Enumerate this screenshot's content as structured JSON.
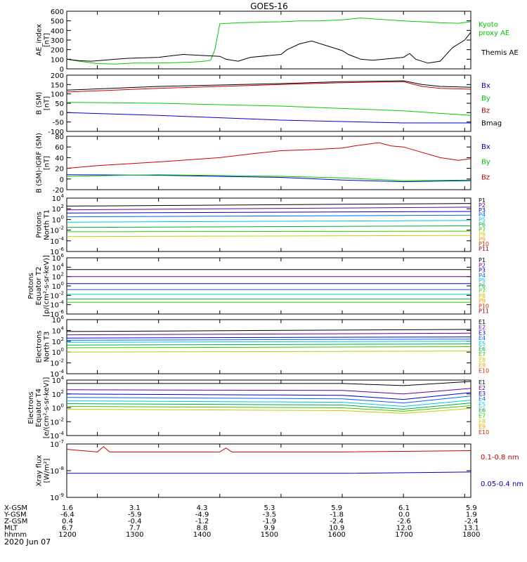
{
  "title": "GOES-16",
  "date_label": "2020 Jun 07",
  "ephemeris_rows": [
    {
      "label": "X-GSM",
      "values": [
        "1.6",
        "3.1",
        "4.3",
        "5.3",
        "5.9",
        "6.1",
        "5.9"
      ]
    },
    {
      "label": "Y-GSM",
      "values": [
        "-6.4",
        "-5.9",
        "-4.9",
        "-3.5",
        "-1.8",
        "0.0",
        "1.9"
      ]
    },
    {
      "label": "Z-GSM",
      "values": [
        "0.4",
        "-0.4",
        "-1.2",
        "-1.9",
        "-2.4",
        "-2.6",
        "-2.4"
      ]
    },
    {
      "label": "MLT",
      "values": [
        "6.7",
        "7.7",
        "8.8",
        "9.9",
        "10.9",
        "12.0",
        "13.1"
      ]
    },
    {
      "label": "hhmm",
      "values": [
        "1200",
        "1300",
        "1400",
        "1500",
        "1600",
        "1700",
        "1800"
      ]
    }
  ],
  "colors": {
    "black": "#000000",
    "green": "#00cc00",
    "blue": "#0000cc",
    "red": "#cc0000",
    "P": [
      "#000000",
      "#660099",
      "#0000cc",
      "#0066ff",
      "#00cccc",
      "#00aa44",
      "#33cc00",
      "#cccc00",
      "#ff9900",
      "#cc3300",
      "#aa0000"
    ],
    "E": [
      "#000000",
      "#660099",
      "#0000cc",
      "#0066ff",
      "#00cccc",
      "#00aa44",
      "#33cc00",
      "#cccc00",
      "#ff9900",
      "#cc3300"
    ]
  },
  "chart_data": [
    {
      "type": "line",
      "panel": "ae",
      "ylabel": [
        "AE_index",
        "[nT]"
      ],
      "ylim": [
        0,
        600
      ],
      "yticks": [
        "0",
        "100",
        "200",
        "300",
        "400",
        "500",
        "600"
      ],
      "xlim": [
        1150,
        1810
      ],
      "legend": [
        {
          "text": "Kyoto",
          "color": "green"
        },
        {
          "text": "proxy AE",
          "color": "green"
        },
        {
          "text": "Themis AE",
          "color": "black"
        }
      ],
      "series": [
        {
          "name": "Kyoto proxy AE",
          "color": "green",
          "x": [
            1150,
            1170,
            1200,
            1230,
            1260,
            1300,
            1330,
            1355,
            1375,
            1385,
            1392,
            1400,
            1430,
            1500,
            1530,
            1560,
            1600,
            1630,
            1700,
            1730,
            1760,
            1790,
            1810
          ],
          "y": [
            100,
            80,
            55,
            50,
            60,
            60,
            65,
            70,
            80,
            90,
            200,
            470,
            480,
            490,
            500,
            500,
            510,
            530,
            500,
            490,
            480,
            475,
            490
          ]
        },
        {
          "name": "Themis AE",
          "color": "black",
          "x": [
            1150,
            1170,
            1190,
            1210,
            1230,
            1250,
            1300,
            1320,
            1340,
            1400,
            1410,
            1430,
            1450,
            1500,
            1510,
            1530,
            1550,
            1600,
            1610,
            1630,
            1650,
            1700,
            1710,
            1720,
            1740,
            1760,
            1780,
            1800,
            1810
          ],
          "y": [
            100,
            85,
            80,
            90,
            100,
            110,
            120,
            135,
            150,
            130,
            100,
            80,
            120,
            150,
            200,
            260,
            290,
            190,
            150,
            100,
            90,
            120,
            160,
            100,
            60,
            80,
            220,
            300,
            380
          ]
        }
      ]
    },
    {
      "type": "line",
      "panel": "bsm",
      "ylabel": [
        "B (SM)",
        "[nT]"
      ],
      "ylim": [
        -100,
        200
      ],
      "yticks": [
        "-100",
        "-50",
        "0",
        "50",
        "100",
        "150",
        "200"
      ],
      "xlim": [
        1150,
        1810
      ],
      "legend": [
        {
          "text": "Bx",
          "color": "blue"
        },
        {
          "text": "By",
          "color": "green"
        },
        {
          "text": "Bz",
          "color": "red"
        },
        {
          "text": "Bmag",
          "color": "black"
        }
      ],
      "series": [
        {
          "name": "Bx",
          "color": "blue",
          "x": [
            1150,
            1300,
            1500,
            1700,
            1810
          ],
          "y": [
            0,
            -15,
            -40,
            -55,
            -55
          ]
        },
        {
          "name": "By",
          "color": "green",
          "x": [
            1150,
            1300,
            1500,
            1700,
            1810
          ],
          "y": [
            55,
            50,
            35,
            10,
            -15
          ]
        },
        {
          "name": "Bz",
          "color": "red",
          "x": [
            1150,
            1300,
            1500,
            1600,
            1700,
            1730,
            1760,
            1810
          ],
          "y": [
            110,
            130,
            150,
            160,
            165,
            140,
            130,
            125
          ]
        },
        {
          "name": "Bmag",
          "color": "black",
          "x": [
            1150,
            1300,
            1500,
            1600,
            1700,
            1730,
            1760,
            1810
          ],
          "y": [
            120,
            140,
            155,
            165,
            170,
            150,
            140,
            135
          ]
        }
      ]
    },
    {
      "type": "line",
      "panel": "digrf",
      "ylabel": [
        "B (SM)-IGRF (SM)",
        "[nT]"
      ],
      "ylim": [
        -20,
        80
      ],
      "yticks": [
        "-20",
        "0",
        "20",
        "40",
        "60",
        "80"
      ],
      "xlim": [
        1150,
        1810
      ],
      "legend": [
        {
          "text": "Bx",
          "color": "blue"
        },
        {
          "text": "By",
          "color": "green"
        },
        {
          "text": "Bz",
          "color": "red"
        }
      ],
      "series": [
        {
          "name": "Bx",
          "color": "blue",
          "x": [
            1150,
            1300,
            1500,
            1600,
            1700,
            1810
          ],
          "y": [
            8,
            7,
            3,
            -2,
            -5,
            -3
          ]
        },
        {
          "name": "By",
          "color": "green",
          "x": [
            1150,
            1300,
            1500,
            1600,
            1700,
            1810
          ],
          "y": [
            5,
            8,
            5,
            2,
            -3,
            -2
          ]
        },
        {
          "name": "Bz",
          "color": "red",
          "x": [
            1150,
            1200,
            1300,
            1400,
            1450,
            1500,
            1550,
            1600,
            1620,
            1640,
            1660,
            1680,
            1700,
            1730,
            1760,
            1790,
            1810
          ],
          "y": [
            20,
            25,
            32,
            40,
            47,
            53,
            55,
            58,
            62,
            65,
            68,
            62,
            60,
            50,
            40,
            35,
            38
          ]
        }
      ]
    },
    {
      "type": "line",
      "panel": "p_north",
      "ylabel": [
        "Protons",
        "North T1"
      ],
      "ylim_log": [
        -6,
        4
      ],
      "yticks": [
        "10^-6",
        "10^-4",
        "10^-2",
        "10^0",
        "10^2",
        "10^4"
      ],
      "xlim": [
        1150,
        1810
      ],
      "legend": [
        "P1",
        "P2",
        "P3",
        "P4",
        "P5",
        "P6",
        "P7",
        "P8",
        "P9",
        "P10",
        "P11"
      ],
      "series": [
        {
          "name": "P1",
          "x": [
            1150,
            1810
          ],
          "y": [
            2.5,
            3
          ]
        },
        {
          "name": "P2",
          "x": [
            1150,
            1810
          ],
          "y": [
            1.8,
            2.3
          ]
        },
        {
          "name": "P3",
          "x": [
            1150,
            1810
          ],
          "y": [
            1.2,
            1.5
          ]
        },
        {
          "name": "P4",
          "x": [
            1150,
            1810
          ],
          "y": [
            0.5,
            0.8
          ]
        },
        {
          "name": "P5",
          "x": [
            1150,
            1810
          ],
          "y": [
            -0.5,
            -0.2
          ]
        },
        {
          "name": "P6",
          "x": [
            1150,
            1810
          ],
          "y": [
            -1.5,
            -1.2
          ]
        },
        {
          "name": "P7",
          "x": [
            1150,
            1810
          ],
          "y": [
            -2.3,
            -2.2
          ]
        },
        {
          "name": "P8",
          "x": [
            1150,
            1810
          ],
          "y": [
            -3.2,
            -3.0
          ]
        }
      ]
    },
    {
      "type": "line",
      "panel": "p_equator",
      "ylabel": [
        "Protons",
        "Equator T2",
        "[p/(cm²-s-sr-keV)]"
      ],
      "ylim_log": [
        -6,
        6
      ],
      "yticks": [
        "10^-6",
        "10^-4",
        "10^-2",
        "10^0",
        "10^2",
        "10^4",
        "10^6"
      ],
      "xlim": [
        1150,
        1810
      ],
      "legend": [
        "P1",
        "P2",
        "P3",
        "P4",
        "P5",
        "P6",
        "P7",
        "P8",
        "P9",
        "P10",
        "P11"
      ],
      "series": [
        {
          "name": "P1",
          "x": [
            1150,
            1810
          ],
          "y": [
            3.5,
            3.5
          ]
        },
        {
          "name": "P2",
          "x": [
            1150,
            1810
          ],
          "y": [
            2,
            2
          ]
        },
        {
          "name": "P3",
          "x": [
            1150,
            1810
          ],
          "y": [
            0.5,
            0.5
          ]
        },
        {
          "name": "P4",
          "x": [
            1150,
            1810
          ],
          "y": [
            -0.8,
            -0.8
          ]
        },
        {
          "name": "P5",
          "x": [
            1150,
            1810
          ],
          "y": [
            -1.8,
            -1.8
          ]
        },
        {
          "name": "P6",
          "x": [
            1150,
            1810
          ],
          "y": [
            -2.8,
            -2.8
          ]
        },
        {
          "name": "P7",
          "x": [
            1150,
            1810
          ],
          "y": [
            -3.5,
            -3.5
          ]
        }
      ]
    },
    {
      "type": "line",
      "panel": "e_north",
      "ylabel": [
        "Electrons",
        "North T3"
      ],
      "ylim_log": [
        -4,
        6
      ],
      "yticks": [
        "10^-4",
        "10^-2",
        "10^0",
        "10^2",
        "10^4",
        "10^6"
      ],
      "xlim": [
        1150,
        1810
      ],
      "legend": [
        "E1",
        "E2",
        "E3",
        "E4",
        "E5",
        "E6",
        "E7",
        "E8",
        "E9",
        "E10"
      ],
      "series": [
        {
          "name": "E1",
          "x": [
            1150,
            1810
          ],
          "y": [
            3.8,
            4.2
          ]
        },
        {
          "name": "E2",
          "x": [
            1150,
            1810
          ],
          "y": [
            3.2,
            3.5
          ]
        },
        {
          "name": "E3",
          "x": [
            1150,
            1810
          ],
          "y": [
            2.6,
            2.8
          ]
        },
        {
          "name": "E4",
          "x": [
            1150,
            1810
          ],
          "y": [
            2.2,
            2.4
          ]
        },
        {
          "name": "E5",
          "x": [
            1150,
            1810
          ],
          "y": [
            1.8,
            2.0
          ]
        },
        {
          "name": "E6",
          "x": [
            1150,
            1810
          ],
          "y": [
            1.3,
            1.5
          ]
        },
        {
          "name": "E7",
          "x": [
            1150,
            1810
          ],
          "y": [
            0.8,
            1.0
          ]
        },
        {
          "name": "E8",
          "x": [
            1150,
            1810
          ],
          "y": [
            0,
            0.2
          ]
        }
      ]
    },
    {
      "type": "line",
      "panel": "e_equator",
      "ylabel": [
        "Electrons",
        "Equator T4",
        "[e/(cm²-s-sr-keV)]"
      ],
      "ylim_log": [
        -4,
        4
      ],
      "yticks": [
        "10^-4",
        "10^-2",
        "10^0",
        "10^2",
        "10^4"
      ],
      "xlim": [
        1150,
        1810
      ],
      "legend": [
        "E1",
        "E2",
        "E3",
        "E4",
        "E5",
        "E6",
        "E7",
        "E8",
        "E9",
        "E10"
      ],
      "series": [
        {
          "name": "E1",
          "x": [
            1150,
            1600,
            1700,
            1810
          ],
          "y": [
            3.5,
            3.5,
            3.2,
            3.8
          ]
        },
        {
          "name": "E2",
          "x": [
            1150,
            1600,
            1700,
            1810
          ],
          "y": [
            2.6,
            2.5,
            2.0,
            2.8
          ]
        },
        {
          "name": "E3",
          "x": [
            1150,
            1600,
            1700,
            1810
          ],
          "y": [
            2.0,
            1.8,
            1.2,
            2.2
          ]
        },
        {
          "name": "E4",
          "x": [
            1150,
            1600,
            1700,
            1810
          ],
          "y": [
            1.5,
            1.3,
            0.7,
            1.7
          ]
        },
        {
          "name": "E5",
          "x": [
            1150,
            1600,
            1700,
            1810
          ],
          "y": [
            1.0,
            0.8,
            0.2,
            1.1
          ]
        },
        {
          "name": "E6",
          "x": [
            1150,
            1600,
            1700,
            1810
          ],
          "y": [
            0.6,
            0.4,
            -0.2,
            0.7
          ]
        },
        {
          "name": "E7",
          "x": [
            1150,
            1600,
            1700,
            1810
          ],
          "y": [
            0.2,
            0,
            -0.5,
            0.3
          ]
        },
        {
          "name": "E8",
          "x": [
            1150,
            1600,
            1700,
            1810
          ],
          "y": [
            -0.2,
            -0.4,
            -0.8,
            -0.1
          ]
        }
      ]
    },
    {
      "type": "line",
      "panel": "xray",
      "ylabel": [
        "Xray flux",
        "[W/m²]"
      ],
      "ylim_log": [
        -9,
        -7
      ],
      "yticks": [
        "10^-9",
        "10^-8",
        "10^-7"
      ],
      "xlim": [
        1150,
        1810
      ],
      "legend": [
        {
          "text": "0.1-0.8 nm",
          "color": "red"
        },
        {
          "text": "0.05-0.4 nm",
          "color": "blue"
        }
      ],
      "series": [
        {
          "name": "0.1-0.8 nm",
          "color": "red",
          "x": [
            1150,
            1200,
            1210,
            1220,
            1400,
            1410,
            1420,
            1600,
            1810
          ],
          "y": [
            -7.2,
            -7.3,
            -7.1,
            -7.3,
            -7.3,
            -7.15,
            -7.3,
            -7.3,
            -7.25
          ]
        },
        {
          "name": "0.05-0.4 nm",
          "color": "blue",
          "x": [
            1150,
            1400,
            1600,
            1810
          ],
          "y": [
            -8.1,
            -8.1,
            -8.1,
            -8.05
          ]
        }
      ]
    }
  ]
}
